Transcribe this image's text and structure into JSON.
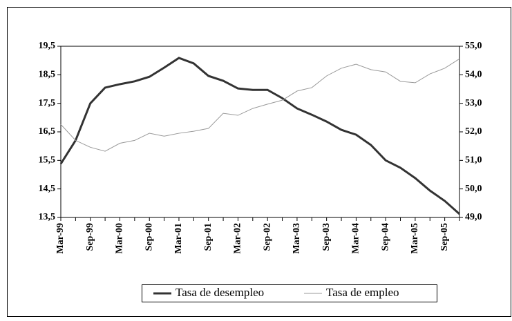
{
  "chart_data": {
    "type": "line",
    "categories": [
      "Mar-99",
      null,
      "Sep-99",
      null,
      "Mar-00",
      null,
      "Sep-00",
      null,
      "Mar-01",
      null,
      "Sep-01",
      null,
      "Mar-02",
      null,
      "Sep-02",
      null,
      "Mar-03",
      null,
      "Sep-03",
      null,
      "Mar-04",
      null,
      "Sep-04",
      null,
      "Mar-05",
      null,
      "Sep-05",
      null
    ],
    "series": [
      {
        "name": "Tasa de desempleo",
        "color": "#333333",
        "values": [
          15.38,
          16.2,
          17.5,
          18.05,
          18.17,
          18.27,
          18.43,
          18.75,
          19.09,
          18.9,
          18.46,
          18.29,
          18.02,
          17.97,
          17.97,
          17.68,
          17.32,
          17.1,
          16.86,
          16.57,
          16.4,
          16.04,
          15.5,
          15.24,
          14.88,
          14.44,
          14.08,
          13.62
        ]
      },
      {
        "name": "Tasa de empleo",
        "color": "#999999",
        "axis": "y2",
        "values": [
          52.26,
          51.7,
          51.46,
          51.32,
          51.6,
          51.7,
          51.95,
          51.85,
          51.95,
          52.02,
          52.12,
          52.65,
          52.58,
          52.82,
          52.97,
          53.11,
          53.43,
          53.55,
          53.96,
          54.23,
          54.37,
          54.18,
          54.1,
          53.77,
          53.72,
          54.03,
          54.23,
          54.56
        ]
      }
    ],
    "ylim": [
      13.5,
      19.5
    ],
    "yticks": [
      {
        "value": 13.5,
        "label": "13,5"
      },
      {
        "value": 14.5,
        "label": "14,5"
      },
      {
        "value": 15.5,
        "label": "15,5"
      },
      {
        "value": 16.5,
        "label": "16,5"
      },
      {
        "value": 17.5,
        "label": "17,5"
      },
      {
        "value": 18.5,
        "label": "18,5"
      },
      {
        "value": 19.5,
        "label": "19,5"
      }
    ],
    "y2lim": [
      49,
      55
    ],
    "y2ticks": [
      {
        "value": 49,
        "label": "49,0"
      },
      {
        "value": 50,
        "label": "50,0"
      },
      {
        "value": 51,
        "label": "51,0"
      },
      {
        "value": 52,
        "label": "52,0"
      },
      {
        "value": 53,
        "label": "53,0"
      },
      {
        "value": 54,
        "label": "54,0"
      },
      {
        "value": 55,
        "label": "55,0"
      }
    ],
    "grid": false,
    "legend": "bottom"
  }
}
